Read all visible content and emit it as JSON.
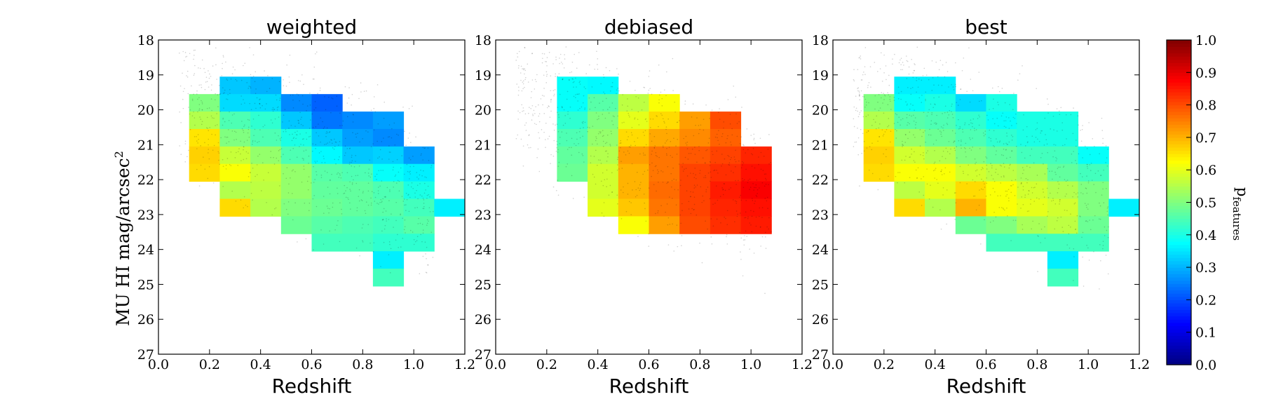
{
  "chart_data": {
    "type": "heatmap",
    "ylabel_main": "MU HI mag/arcsec",
    "ylabel_sup": "2",
    "colorbar": {
      "label": "p",
      "label_sub": "features",
      "range": [
        0.0,
        1.0
      ],
      "ticks": [
        "0.0",
        "0.1",
        "0.2",
        "0.3",
        "0.4",
        "0.5",
        "0.6",
        "0.7",
        "0.8",
        "0.9",
        "1.0"
      ],
      "colormap": "jet"
    },
    "x_ticks": [
      "0.0",
      "0.2",
      "0.4",
      "0.6",
      "0.8",
      "1.0",
      "1.2"
    ],
    "y_ticks": [
      "18",
      "19",
      "20",
      "21",
      "22",
      "23",
      "24",
      "25",
      "26",
      "27"
    ],
    "xlim": [
      0.0,
      1.2
    ],
    "ylim": [
      27,
      18
    ],
    "bin_width_x": 0.12,
    "bin_height_y": 0.5,
    "panels": [
      {
        "title": "weighted",
        "xlabel": "Redshift",
        "cells": [
          {
            "z": 0.3,
            "mu": 19.3,
            "p": 0.32
          },
          {
            "z": 0.42,
            "mu": 19.3,
            "p": 0.3
          },
          {
            "z": 0.18,
            "mu": 19.8,
            "p": 0.5
          },
          {
            "z": 0.3,
            "mu": 19.8,
            "p": 0.34
          },
          {
            "z": 0.42,
            "mu": 19.8,
            "p": 0.34
          },
          {
            "z": 0.54,
            "mu": 19.8,
            "p": 0.26
          },
          {
            "z": 0.66,
            "mu": 19.8,
            "p": 0.22
          },
          {
            "z": 0.18,
            "mu": 20.3,
            "p": 0.55
          },
          {
            "z": 0.3,
            "mu": 20.3,
            "p": 0.45
          },
          {
            "z": 0.42,
            "mu": 20.3,
            "p": 0.42
          },
          {
            "z": 0.54,
            "mu": 20.3,
            "p": 0.32
          },
          {
            "z": 0.66,
            "mu": 20.3,
            "p": 0.24
          },
          {
            "z": 0.78,
            "mu": 20.3,
            "p": 0.26
          },
          {
            "z": 0.9,
            "mu": 20.3,
            "p": 0.28
          },
          {
            "z": 0.18,
            "mu": 20.8,
            "p": 0.65
          },
          {
            "z": 0.3,
            "mu": 20.8,
            "p": 0.5
          },
          {
            "z": 0.42,
            "mu": 20.8,
            "p": 0.45
          },
          {
            "z": 0.54,
            "mu": 20.8,
            "p": 0.4
          },
          {
            "z": 0.66,
            "mu": 20.8,
            "p": 0.32
          },
          {
            "z": 0.78,
            "mu": 20.8,
            "p": 0.28
          },
          {
            "z": 0.9,
            "mu": 20.8,
            "p": 0.26
          },
          {
            "z": 0.18,
            "mu": 21.3,
            "p": 0.67
          },
          {
            "z": 0.3,
            "mu": 21.3,
            "p": 0.57
          },
          {
            "z": 0.42,
            "mu": 21.3,
            "p": 0.52
          },
          {
            "z": 0.54,
            "mu": 21.3,
            "p": 0.45
          },
          {
            "z": 0.66,
            "mu": 21.3,
            "p": 0.37
          },
          {
            "z": 0.78,
            "mu": 21.3,
            "p": 0.32
          },
          {
            "z": 0.9,
            "mu": 21.3,
            "p": 0.33
          },
          {
            "z": 1.02,
            "mu": 21.3,
            "p": 0.28
          },
          {
            "z": 0.18,
            "mu": 21.8,
            "p": 0.66
          },
          {
            "z": 0.3,
            "mu": 21.8,
            "p": 0.62
          },
          {
            "z": 0.42,
            "mu": 21.8,
            "p": 0.57
          },
          {
            "z": 0.54,
            "mu": 21.8,
            "p": 0.52
          },
          {
            "z": 0.66,
            "mu": 21.8,
            "p": 0.46
          },
          {
            "z": 0.78,
            "mu": 21.8,
            "p": 0.45
          },
          {
            "z": 0.9,
            "mu": 21.8,
            "p": 0.38
          },
          {
            "z": 1.02,
            "mu": 21.8,
            "p": 0.36
          },
          {
            "z": 0.3,
            "mu": 22.3,
            "p": 0.55
          },
          {
            "z": 0.42,
            "mu": 22.3,
            "p": 0.56
          },
          {
            "z": 0.54,
            "mu": 22.3,
            "p": 0.52
          },
          {
            "z": 0.66,
            "mu": 22.3,
            "p": 0.47
          },
          {
            "z": 0.78,
            "mu": 22.3,
            "p": 0.47
          },
          {
            "z": 0.9,
            "mu": 22.3,
            "p": 0.45
          },
          {
            "z": 1.02,
            "mu": 22.3,
            "p": 0.4
          },
          {
            "z": 0.3,
            "mu": 22.8,
            "p": 0.66
          },
          {
            "z": 0.42,
            "mu": 22.8,
            "p": 0.55
          },
          {
            "z": 0.54,
            "mu": 22.8,
            "p": 0.5
          },
          {
            "z": 0.66,
            "mu": 22.8,
            "p": 0.48
          },
          {
            "z": 0.78,
            "mu": 22.8,
            "p": 0.47
          },
          {
            "z": 0.9,
            "mu": 22.8,
            "p": 0.46
          },
          {
            "z": 1.02,
            "mu": 22.8,
            "p": 0.44
          },
          {
            "z": 1.14,
            "mu": 22.8,
            "p": 0.36
          },
          {
            "z": 0.54,
            "mu": 23.3,
            "p": 0.48
          },
          {
            "z": 0.66,
            "mu": 23.3,
            "p": 0.46
          },
          {
            "z": 0.78,
            "mu": 23.3,
            "p": 0.45
          },
          {
            "z": 0.9,
            "mu": 23.3,
            "p": 0.44
          },
          {
            "z": 1.02,
            "mu": 23.3,
            "p": 0.46
          },
          {
            "z": 0.66,
            "mu": 23.8,
            "p": 0.44
          },
          {
            "z": 0.78,
            "mu": 23.8,
            "p": 0.44
          },
          {
            "z": 0.9,
            "mu": 23.8,
            "p": 0.42
          },
          {
            "z": 1.02,
            "mu": 23.8,
            "p": 0.42
          },
          {
            "z": 0.9,
            "mu": 24.3,
            "p": 0.36
          },
          {
            "z": 0.9,
            "mu": 24.8,
            "p": 0.44
          }
        ]
      },
      {
        "title": "debiased",
        "xlabel": "Redshift",
        "cells": [
          {
            "z": 0.3,
            "mu": 19.3,
            "p": 0.38
          },
          {
            "z": 0.42,
            "mu": 19.3,
            "p": 0.37
          },
          {
            "z": 0.3,
            "mu": 19.8,
            "p": 0.38
          },
          {
            "z": 0.42,
            "mu": 19.8,
            "p": 0.46
          },
          {
            "z": 0.54,
            "mu": 19.8,
            "p": 0.56
          },
          {
            "z": 0.66,
            "mu": 19.8,
            "p": 0.62
          },
          {
            "z": 0.3,
            "mu": 20.3,
            "p": 0.42
          },
          {
            "z": 0.42,
            "mu": 20.3,
            "p": 0.5
          },
          {
            "z": 0.54,
            "mu": 20.3,
            "p": 0.6
          },
          {
            "z": 0.66,
            "mu": 20.3,
            "p": 0.66
          },
          {
            "z": 0.78,
            "mu": 20.3,
            "p": 0.72
          },
          {
            "z": 0.9,
            "mu": 20.3,
            "p": 0.8
          },
          {
            "z": 0.3,
            "mu": 20.8,
            "p": 0.45
          },
          {
            "z": 0.42,
            "mu": 20.8,
            "p": 0.52
          },
          {
            "z": 0.54,
            "mu": 20.8,
            "p": 0.66
          },
          {
            "z": 0.66,
            "mu": 20.8,
            "p": 0.71
          },
          {
            "z": 0.78,
            "mu": 20.8,
            "p": 0.74
          },
          {
            "z": 0.9,
            "mu": 20.8,
            "p": 0.78
          },
          {
            "z": 0.3,
            "mu": 21.3,
            "p": 0.47
          },
          {
            "z": 0.42,
            "mu": 21.3,
            "p": 0.55
          },
          {
            "z": 0.54,
            "mu": 21.3,
            "p": 0.72
          },
          {
            "z": 0.66,
            "mu": 21.3,
            "p": 0.76
          },
          {
            "z": 0.78,
            "mu": 21.3,
            "p": 0.79
          },
          {
            "z": 0.9,
            "mu": 21.3,
            "p": 0.81
          },
          {
            "z": 1.02,
            "mu": 21.3,
            "p": 0.84
          },
          {
            "z": 0.3,
            "mu": 21.8,
            "p": 0.48
          },
          {
            "z": 0.42,
            "mu": 21.8,
            "p": 0.58
          },
          {
            "z": 0.54,
            "mu": 21.8,
            "p": 0.7
          },
          {
            "z": 0.66,
            "mu": 21.8,
            "p": 0.76
          },
          {
            "z": 0.78,
            "mu": 21.8,
            "p": 0.81
          },
          {
            "z": 0.9,
            "mu": 21.8,
            "p": 0.83
          },
          {
            "z": 1.02,
            "mu": 21.8,
            "p": 0.86
          },
          {
            "z": 0.42,
            "mu": 22.3,
            "p": 0.58
          },
          {
            "z": 0.54,
            "mu": 22.3,
            "p": 0.7
          },
          {
            "z": 0.66,
            "mu": 22.3,
            "p": 0.77
          },
          {
            "z": 0.78,
            "mu": 22.3,
            "p": 0.81
          },
          {
            "z": 0.9,
            "mu": 22.3,
            "p": 0.85
          },
          {
            "z": 1.02,
            "mu": 22.3,
            "p": 0.88
          },
          {
            "z": 0.42,
            "mu": 22.8,
            "p": 0.6
          },
          {
            "z": 0.54,
            "mu": 22.8,
            "p": 0.68
          },
          {
            "z": 0.66,
            "mu": 22.8,
            "p": 0.76
          },
          {
            "z": 0.78,
            "mu": 22.8,
            "p": 0.81
          },
          {
            "z": 0.9,
            "mu": 22.8,
            "p": 0.84
          },
          {
            "z": 1.02,
            "mu": 22.8,
            "p": 0.86
          },
          {
            "z": 0.54,
            "mu": 23.3,
            "p": 0.62
          },
          {
            "z": 0.66,
            "mu": 23.3,
            "p": 0.72
          },
          {
            "z": 0.78,
            "mu": 23.3,
            "p": 0.8
          },
          {
            "z": 0.9,
            "mu": 23.3,
            "p": 0.83
          },
          {
            "z": 1.02,
            "mu": 23.3,
            "p": 0.85
          }
        ]
      },
      {
        "title": "best",
        "xlabel": "Redshift",
        "cells": [
          {
            "z": 0.3,
            "mu": 19.3,
            "p": 0.36
          },
          {
            "z": 0.42,
            "mu": 19.3,
            "p": 0.36
          },
          {
            "z": 0.18,
            "mu": 19.8,
            "p": 0.5
          },
          {
            "z": 0.3,
            "mu": 19.8,
            "p": 0.38
          },
          {
            "z": 0.42,
            "mu": 19.8,
            "p": 0.4
          },
          {
            "z": 0.54,
            "mu": 19.8,
            "p": 0.34
          },
          {
            "z": 0.66,
            "mu": 19.8,
            "p": 0.4
          },
          {
            "z": 0.18,
            "mu": 20.3,
            "p": 0.55
          },
          {
            "z": 0.3,
            "mu": 20.3,
            "p": 0.46
          },
          {
            "z": 0.42,
            "mu": 20.3,
            "p": 0.45
          },
          {
            "z": 0.54,
            "mu": 20.3,
            "p": 0.42
          },
          {
            "z": 0.66,
            "mu": 20.3,
            "p": 0.38
          },
          {
            "z": 0.78,
            "mu": 20.3,
            "p": 0.4
          },
          {
            "z": 0.9,
            "mu": 20.3,
            "p": 0.4
          },
          {
            "z": 0.18,
            "mu": 20.8,
            "p": 0.65
          },
          {
            "z": 0.3,
            "mu": 20.8,
            "p": 0.52
          },
          {
            "z": 0.42,
            "mu": 20.8,
            "p": 0.48
          },
          {
            "z": 0.54,
            "mu": 20.8,
            "p": 0.45
          },
          {
            "z": 0.66,
            "mu": 20.8,
            "p": 0.42
          },
          {
            "z": 0.78,
            "mu": 20.8,
            "p": 0.4
          },
          {
            "z": 0.9,
            "mu": 20.8,
            "p": 0.4
          },
          {
            "z": 0.18,
            "mu": 21.3,
            "p": 0.67
          },
          {
            "z": 0.3,
            "mu": 21.3,
            "p": 0.58
          },
          {
            "z": 0.42,
            "mu": 21.3,
            "p": 0.55
          },
          {
            "z": 0.54,
            "mu": 21.3,
            "p": 0.5
          },
          {
            "z": 0.66,
            "mu": 21.3,
            "p": 0.47
          },
          {
            "z": 0.78,
            "mu": 21.3,
            "p": 0.44
          },
          {
            "z": 0.9,
            "mu": 21.3,
            "p": 0.44
          },
          {
            "z": 1.02,
            "mu": 21.3,
            "p": 0.38
          },
          {
            "z": 0.18,
            "mu": 21.8,
            "p": 0.66
          },
          {
            "z": 0.3,
            "mu": 21.8,
            "p": 0.62
          },
          {
            "z": 0.42,
            "mu": 21.8,
            "p": 0.62
          },
          {
            "z": 0.54,
            "mu": 21.8,
            "p": 0.58
          },
          {
            "z": 0.66,
            "mu": 21.8,
            "p": 0.56
          },
          {
            "z": 0.78,
            "mu": 21.8,
            "p": 0.54
          },
          {
            "z": 0.9,
            "mu": 21.8,
            "p": 0.47
          },
          {
            "z": 1.02,
            "mu": 21.8,
            "p": 0.44
          },
          {
            "z": 0.3,
            "mu": 22.3,
            "p": 0.56
          },
          {
            "z": 0.42,
            "mu": 22.3,
            "p": 0.6
          },
          {
            "z": 0.54,
            "mu": 22.3,
            "p": 0.66
          },
          {
            "z": 0.66,
            "mu": 22.3,
            "p": 0.62
          },
          {
            "z": 0.78,
            "mu": 22.3,
            "p": 0.58
          },
          {
            "z": 0.9,
            "mu": 22.3,
            "p": 0.55
          },
          {
            "z": 1.02,
            "mu": 22.3,
            "p": 0.5
          },
          {
            "z": 0.3,
            "mu": 22.8,
            "p": 0.66
          },
          {
            "z": 0.42,
            "mu": 22.8,
            "p": 0.55
          },
          {
            "z": 0.54,
            "mu": 22.8,
            "p": 0.7
          },
          {
            "z": 0.66,
            "mu": 22.8,
            "p": 0.62
          },
          {
            "z": 0.78,
            "mu": 22.8,
            "p": 0.6
          },
          {
            "z": 0.9,
            "mu": 22.8,
            "p": 0.58
          },
          {
            "z": 1.02,
            "mu": 22.8,
            "p": 0.5
          },
          {
            "z": 1.14,
            "mu": 22.8,
            "p": 0.36
          },
          {
            "z": 0.54,
            "mu": 23.3,
            "p": 0.48
          },
          {
            "z": 0.66,
            "mu": 23.3,
            "p": 0.5
          },
          {
            "z": 0.78,
            "mu": 23.3,
            "p": 0.54
          },
          {
            "z": 0.9,
            "mu": 23.3,
            "p": 0.56
          },
          {
            "z": 1.02,
            "mu": 23.3,
            "p": 0.48
          },
          {
            "z": 0.66,
            "mu": 23.8,
            "p": 0.44
          },
          {
            "z": 0.78,
            "mu": 23.8,
            "p": 0.44
          },
          {
            "z": 0.9,
            "mu": 23.8,
            "p": 0.44
          },
          {
            "z": 1.02,
            "mu": 23.8,
            "p": 0.44
          },
          {
            "z": 0.9,
            "mu": 24.3,
            "p": 0.36
          },
          {
            "z": 0.9,
            "mu": 24.8,
            "p": 0.44
          }
        ]
      }
    ]
  }
}
